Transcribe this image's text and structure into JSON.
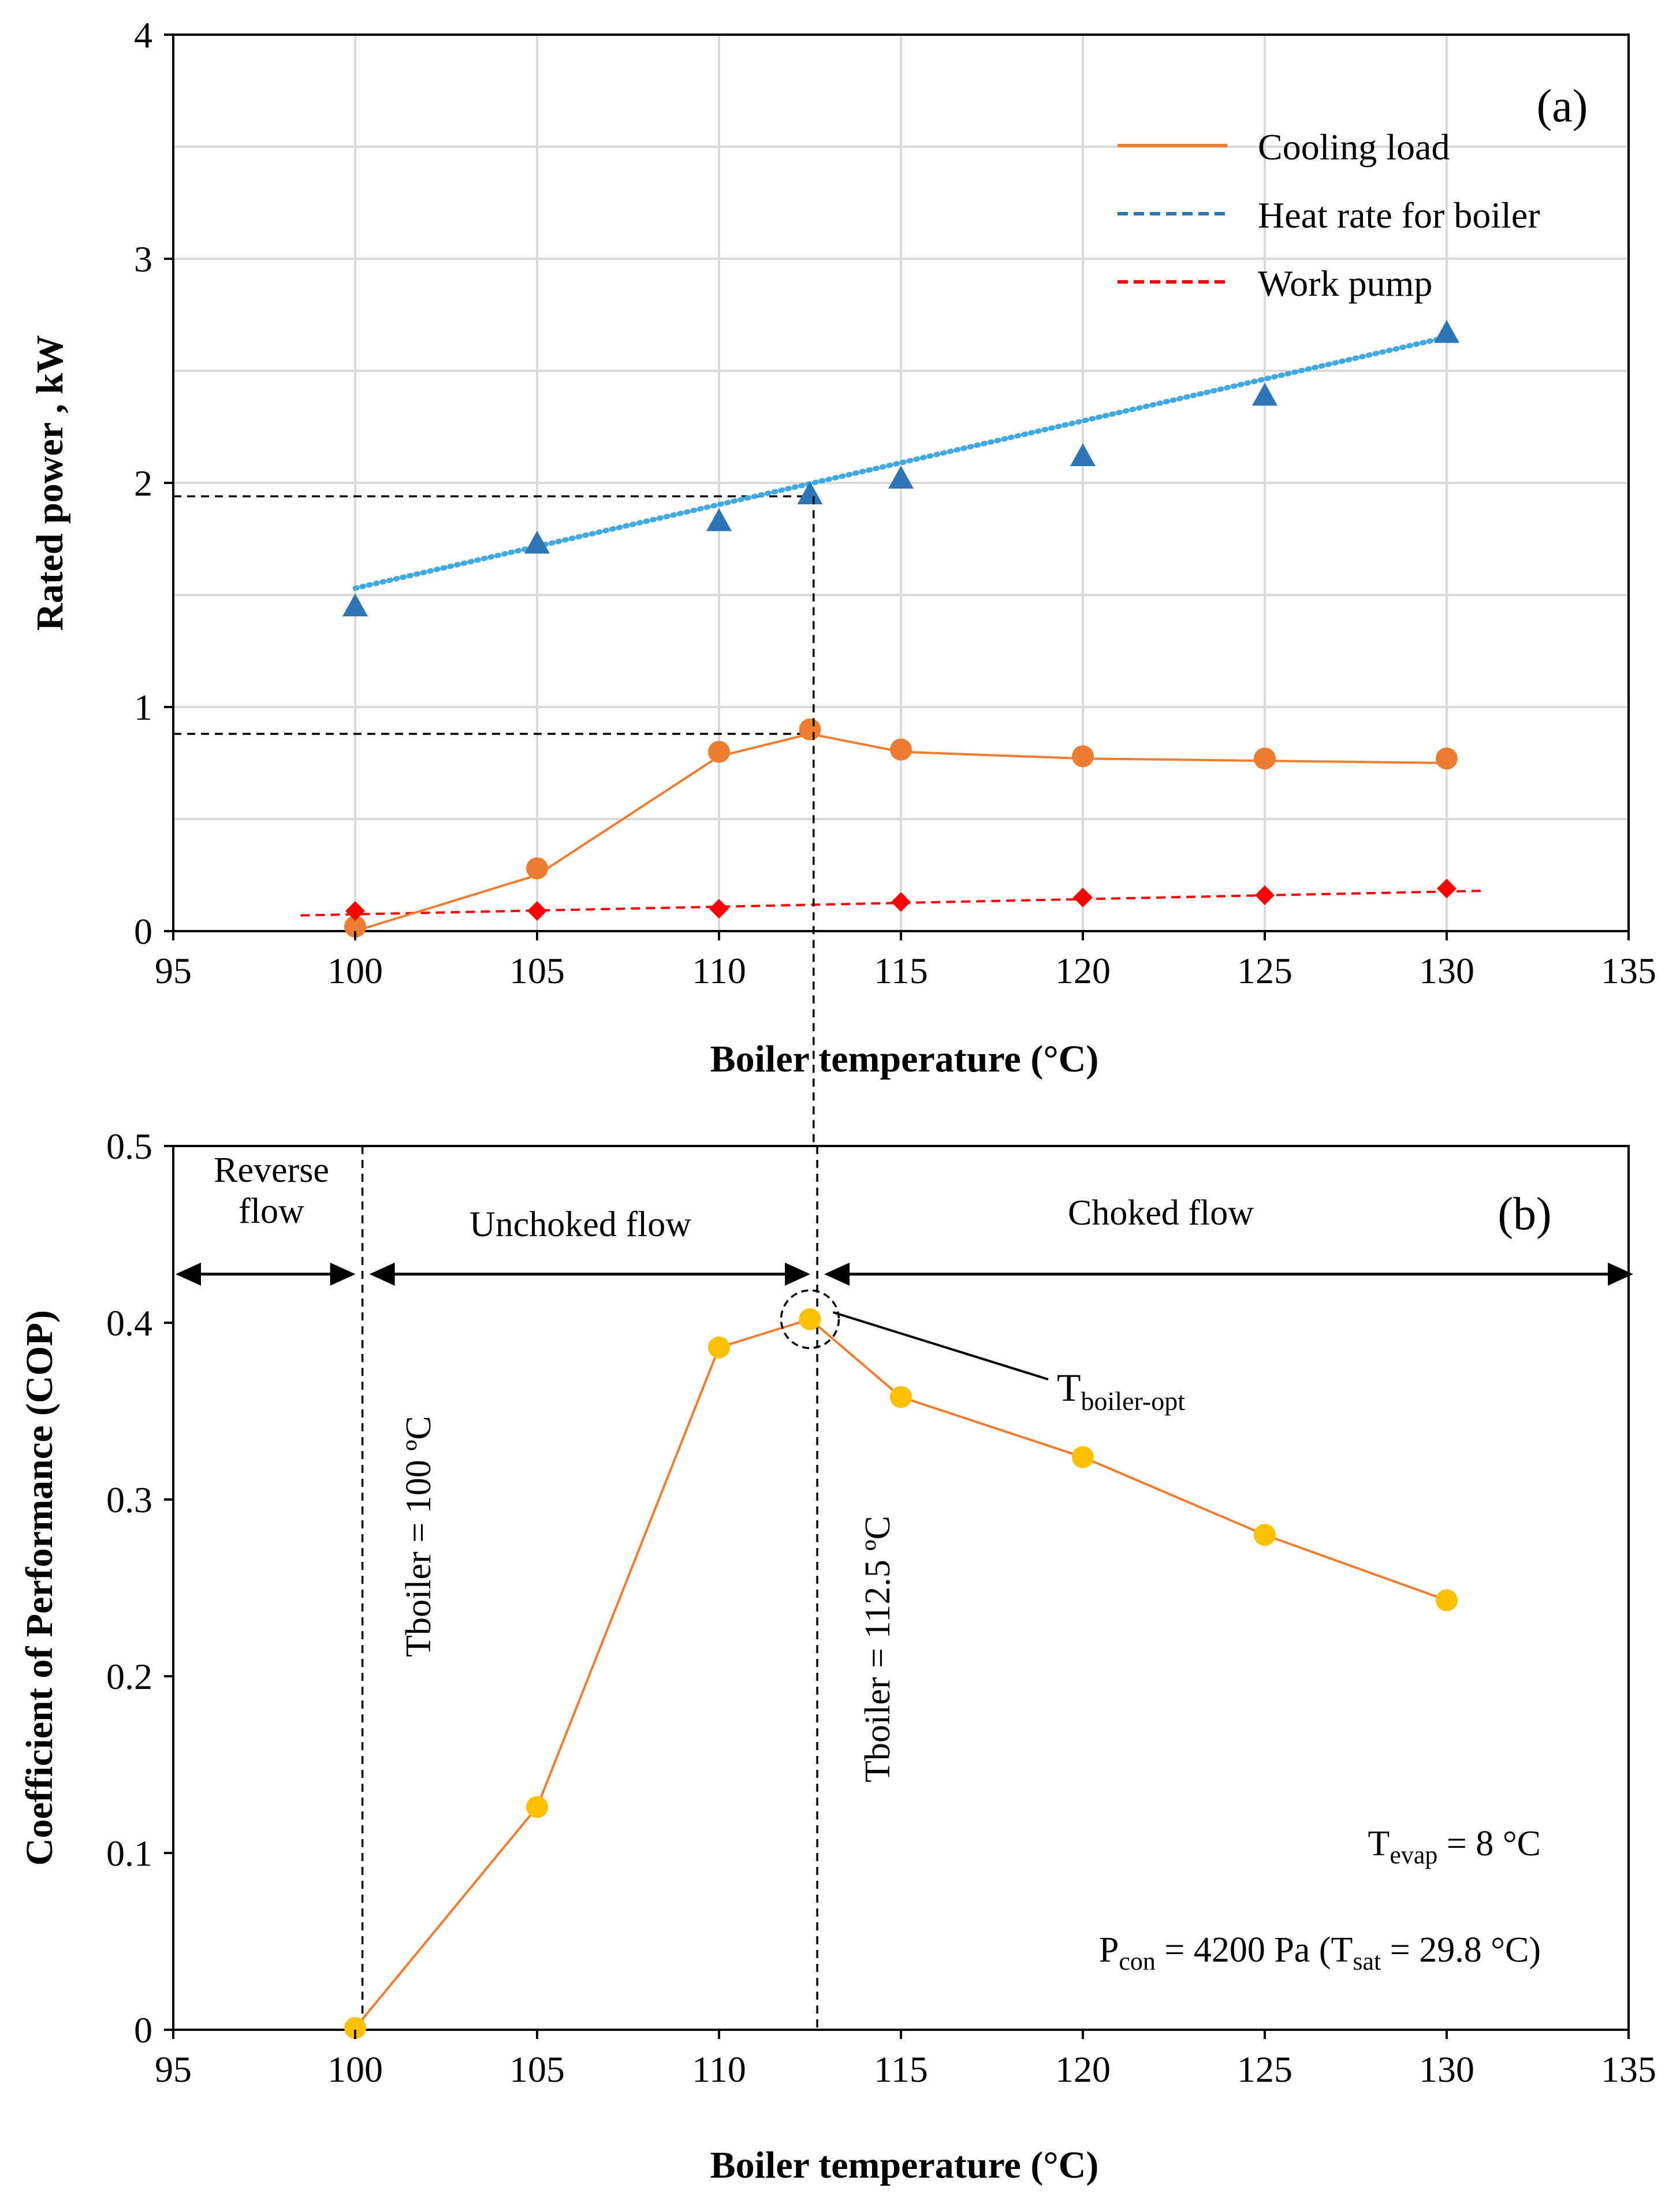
{
  "colors": {
    "cooling": "#ED7D31",
    "heat": "#2E75B6",
    "heat_fit": "#3FA9E0",
    "pump": "#FF0000",
    "cop_line": "#ED7D31",
    "cop_marker": "#FFC000"
  },
  "chart_data": [
    {
      "type": "line",
      "panel_label": "(a)",
      "xlabel": "Boiler temperature (°C)",
      "ylabel": "Rated power , kW",
      "xlim": [
        95,
        135
      ],
      "ylim": [
        0,
        4
      ],
      "x_ticks": [
        "95",
        "100",
        "105",
        "110",
        "115",
        "120",
        "125",
        "130",
        "135"
      ],
      "y_ticks": [
        "0",
        "1",
        "2",
        "3",
        "4"
      ],
      "grid": true,
      "legend_position": "top-right",
      "legend": [
        "Cooling load",
        "Heat rate for boiler",
        "Work pump"
      ],
      "series": [
        {
          "name": "Cooling load",
          "x": [
            100,
            105,
            110,
            112.5,
            115,
            120,
            125,
            130
          ],
          "values": [
            0.02,
            0.28,
            0.8,
            0.9,
            0.81,
            0.78,
            0.77,
            0.77
          ],
          "fit": [
            0.0,
            0.25,
            0.78,
            0.88,
            0.8,
            0.77,
            0.76,
            0.75
          ]
        },
        {
          "name": "Heat rate for boiler",
          "x": [
            100,
            105,
            110,
            112.5,
            115,
            120,
            125,
            130
          ],
          "values": [
            1.45,
            1.73,
            1.83,
            1.95,
            2.02,
            2.12,
            2.39,
            2.67
          ],
          "fit_line": {
            "x": [
              100,
              130
            ],
            "y": [
              1.53,
              2.65
            ]
          }
        },
        {
          "name": "Work pump",
          "x": [
            100,
            105,
            110,
            115,
            120,
            125,
            130
          ],
          "values": [
            0.09,
            0.09,
            0.1,
            0.13,
            0.15,
            0.16,
            0.19
          ],
          "fit_line": {
            "x": [
              98.5,
              131
            ],
            "y": [
              0.07,
              0.18
            ]
          }
        }
      ],
      "guides": {
        "x": 112.6,
        "y_cooling": 0.88,
        "y_heat": 1.94
      }
    },
    {
      "type": "line",
      "panel_label": "(b)",
      "xlabel": "Boiler temperature (°C)",
      "ylabel": "Coefficient of Performance (COP)",
      "xlim": [
        95,
        135
      ],
      "ylim": [
        0,
        0.5
      ],
      "x_ticks": [
        "95",
        "100",
        "105",
        "110",
        "115",
        "120",
        "125",
        "130",
        "135"
      ],
      "y_ticks": [
        "0",
        "0.1",
        "0.2",
        "0.3",
        "0.4",
        "0.5"
      ],
      "grid": false,
      "series": [
        {
          "name": "COP",
          "x": [
            100,
            105,
            110,
            112.5,
            115,
            120,
            125,
            130
          ],
          "values": [
            0.001,
            0.126,
            0.386,
            0.402,
            0.358,
            0.324,
            0.28,
            0.243
          ]
        }
      ],
      "regions": {
        "reverse_top": "Reverse",
        "reverse_bottom": "flow",
        "unchoked": "Unchoked flow",
        "choked": "Choked flow"
      },
      "vlines": [
        {
          "x": 100.2,
          "label": "Tboiler = 100 ºC"
        },
        {
          "x": 112.7,
          "label": "Tboiler = 112.5 ºC"
        }
      ],
      "optimum": {
        "x": 112.5,
        "y": 0.402,
        "label": "T",
        "label_sub": "boiler-opt"
      },
      "conditions": {
        "evap_main": "T",
        "evap_sub": "evap",
        "evap_value": " = 8 °C",
        "con_main": "P",
        "con_sub": "con",
        "con_value": " = 4200 Pa (T",
        "sat_sub": "sat",
        "sat_value": " = 29.8 °C)"
      }
    }
  ]
}
